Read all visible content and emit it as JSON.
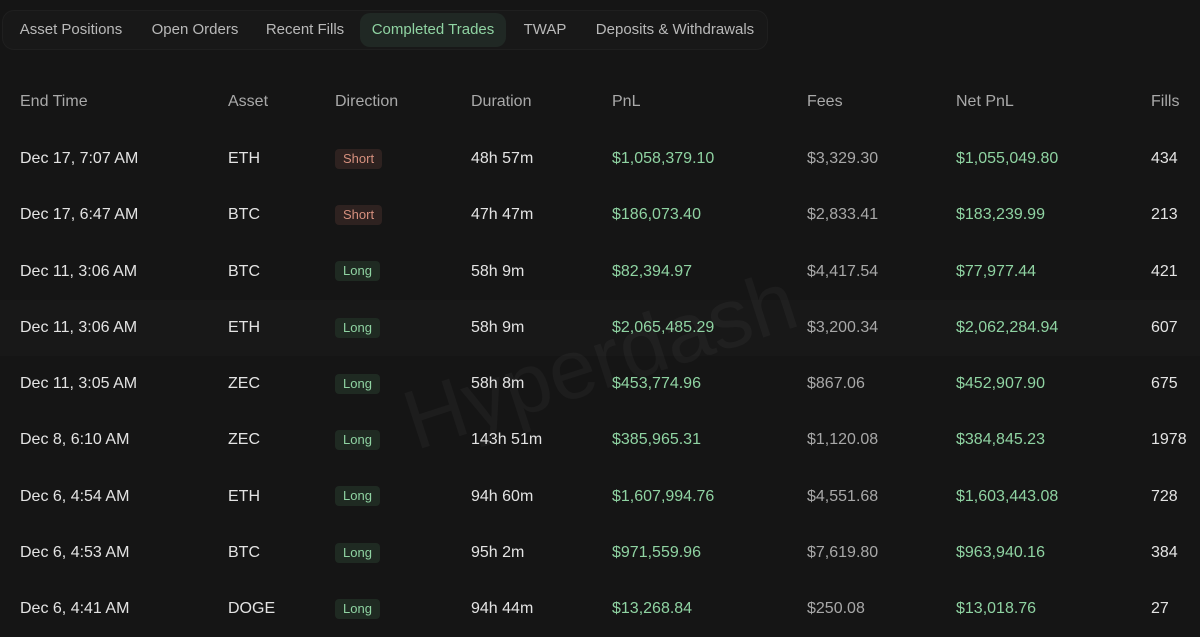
{
  "tabs": [
    {
      "label": "Asset Positions",
      "active": false
    },
    {
      "label": "Open Orders",
      "active": false
    },
    {
      "label": "Recent Fills",
      "active": false
    },
    {
      "label": "Completed Trades",
      "active": true
    },
    {
      "label": "TWAP",
      "active": false
    },
    {
      "label": "Deposits & Withdrawals",
      "active": false
    }
  ],
  "table": {
    "columns": [
      "End Time",
      "Asset",
      "Direction",
      "Duration",
      "PnL",
      "Fees",
      "Net PnL",
      "Fills"
    ],
    "rows": [
      {
        "end_time": "Dec 17, 7:07 AM",
        "asset": "ETH",
        "direction": "Short",
        "duration": "48h 57m",
        "pnl": "$1,058,379.10",
        "fees": "$3,329.30",
        "net_pnl": "$1,055,049.80",
        "fills": "434"
      },
      {
        "end_time": "Dec 17, 6:47 AM",
        "asset": "BTC",
        "direction": "Short",
        "duration": "47h 47m",
        "pnl": "$186,073.40",
        "fees": "$2,833.41",
        "net_pnl": "$183,239.99",
        "fills": "213"
      },
      {
        "end_time": "Dec 11, 3:06 AM",
        "asset": "BTC",
        "direction": "Long",
        "duration": "58h 9m",
        "pnl": "$82,394.97",
        "fees": "$4,417.54",
        "net_pnl": "$77,977.44",
        "fills": "421"
      },
      {
        "end_time": "Dec 11, 3:06 AM",
        "asset": "ETH",
        "direction": "Long",
        "duration": "58h 9m",
        "pnl": "$2,065,485.29",
        "fees": "$3,200.34",
        "net_pnl": "$2,062,284.94",
        "fills": "607"
      },
      {
        "end_time": "Dec 11, 3:05 AM",
        "asset": "ZEC",
        "direction": "Long",
        "duration": "58h 8m",
        "pnl": "$453,774.96",
        "fees": "$867.06",
        "net_pnl": "$452,907.90",
        "fills": "675"
      },
      {
        "end_time": "Dec 8, 6:10 AM",
        "asset": "ZEC",
        "direction": "Long",
        "duration": "143h 51m",
        "pnl": "$385,965.31",
        "fees": "$1,120.08",
        "net_pnl": "$384,845.23",
        "fills": "1978"
      },
      {
        "end_time": "Dec 6, 4:54 AM",
        "asset": "ETH",
        "direction": "Long",
        "duration": "94h 60m",
        "pnl": "$1,607,994.76",
        "fees": "$4,551.68",
        "net_pnl": "$1,603,443.08",
        "fills": "728"
      },
      {
        "end_time": "Dec 6, 4:53 AM",
        "asset": "BTC",
        "direction": "Long",
        "duration": "95h 2m",
        "pnl": "$971,559.96",
        "fees": "$7,619.80",
        "net_pnl": "$963,940.16",
        "fills": "384"
      },
      {
        "end_time": "Dec 6, 4:41 AM",
        "asset": "DOGE",
        "direction": "Long",
        "duration": "94h 44m",
        "pnl": "$13,268.84",
        "fees": "$250.08",
        "net_pnl": "$13,018.76",
        "fills": "27"
      }
    ]
  },
  "watermark": "Hyperdash",
  "colors": {
    "background": "#151515",
    "positive": "#8fd3a2",
    "short_text": "#d6907e",
    "short_bg": "#2e2220",
    "long_bg": "#1f2a22",
    "active_tab_bg": "#202824"
  }
}
